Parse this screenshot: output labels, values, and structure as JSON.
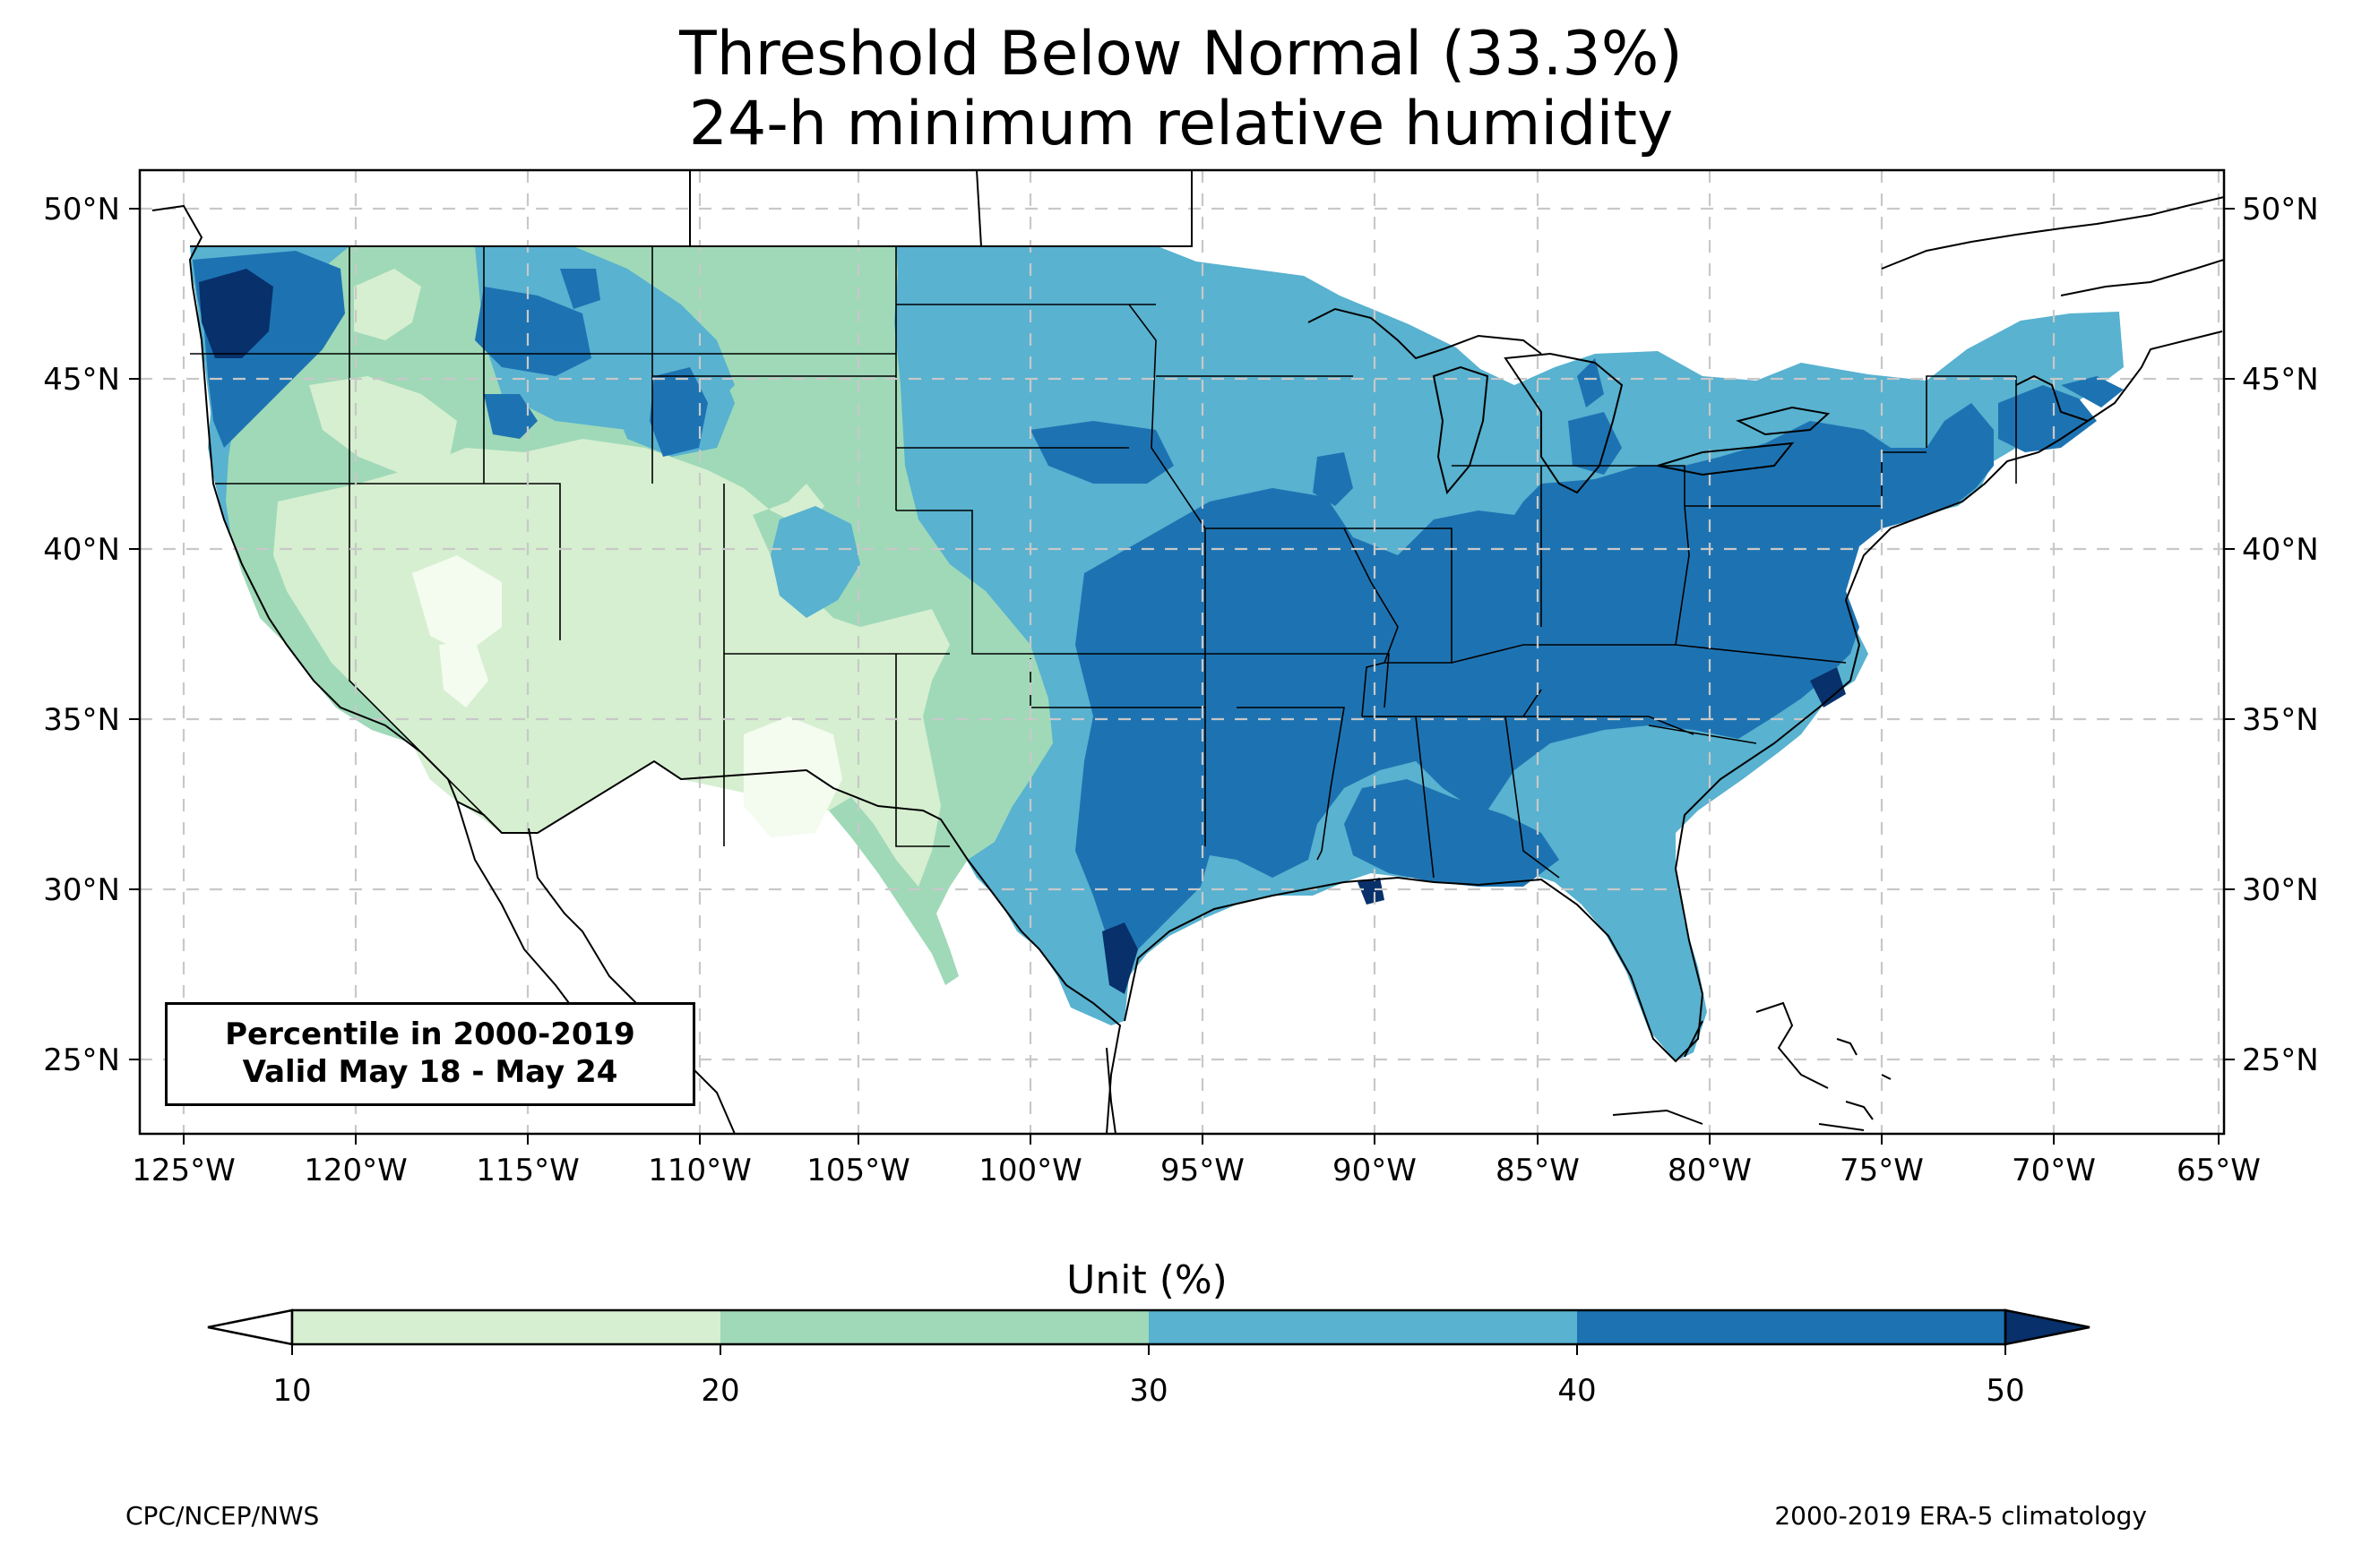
{
  "title": "Threshold Below Normal (33.3%)",
  "subtitle": "24-h minimum relative humidity",
  "infobox": {
    "line1": "Percentile in 2000-2019",
    "line2": "Valid May 18 - May 24"
  },
  "longitude_labels": [
    "125°W",
    "120°W",
    "115°W",
    "110°W",
    "105°W",
    "100°W",
    "95°W",
    "90°W",
    "85°W",
    "80°W",
    "75°W",
    "70°W",
    "65°W"
  ],
  "latitude_labels": [
    "50°N",
    "45°N",
    "40°N",
    "35°N",
    "30°N",
    "25°N"
  ],
  "colorbar": {
    "title": "Unit (%)",
    "tick_labels": [
      "10",
      "20",
      "30",
      "40",
      "50"
    ],
    "colors": [
      "#d6efd0",
      "#9fd9b8",
      "#58b2d0",
      "#1d73b2",
      "#08306b"
    ],
    "under_color": "#ffffff",
    "over_color": "#08306b"
  },
  "credits": {
    "left": "CPC/NCEP/NWS",
    "right": "2000-2019 ERA-5 climatology"
  },
  "legend_colors": {
    "very_low": "#f4fbef",
    "low": "#d6efd0",
    "mid_low": "#9fd9b8",
    "mid": "#58b2d0",
    "high": "#1d73b2",
    "very_high": "#08306b",
    "border": "#000000",
    "county": "#9a9a9a",
    "grid": "#c8c8c8"
  }
}
